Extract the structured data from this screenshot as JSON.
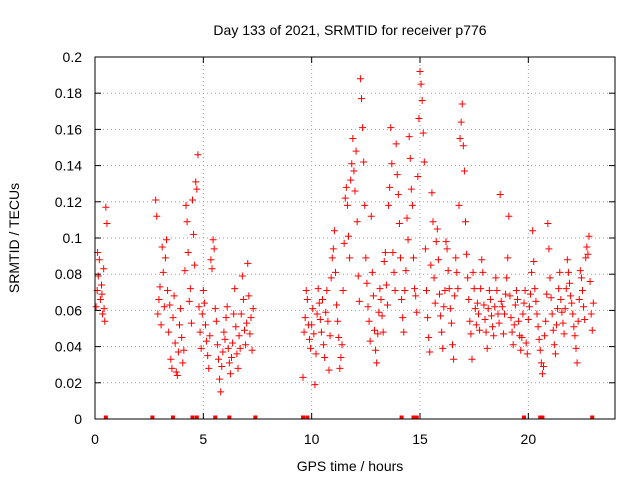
{
  "chart_data": {
    "type": "scatter",
    "title": "Day 133 of 2021, SRMTID for receiver p776",
    "xlabel": "GPS time / hours",
    "ylabel": "SRMTID / TECUs",
    "xlim": [
      0,
      24
    ],
    "ylim": [
      0,
      0.2
    ],
    "grid": true,
    "marker": "+",
    "colors": {
      "points": "#ff0000",
      "grid": "#a0a0a0",
      "axis": "#000000"
    },
    "x_ticks": [
      {
        "value": 0,
        "label": "0"
      },
      {
        "value": 5,
        "label": "5"
      },
      {
        "value": 10,
        "label": "10"
      },
      {
        "value": 15,
        "label": "15"
      },
      {
        "value": 20,
        "label": "20"
      }
    ],
    "y_ticks": [
      {
        "value": 0,
        "label": "0"
      },
      {
        "value": 0.02,
        "label": "0.02"
      },
      {
        "value": 0.04,
        "label": "0.04"
      },
      {
        "value": 0.06,
        "label": "0.06"
      },
      {
        "value": 0.08,
        "label": "0.08"
      },
      {
        "value": 0.1,
        "label": "0.1"
      },
      {
        "value": 0.12,
        "label": "0.12"
      },
      {
        "value": 0.14,
        "label": "0.14"
      },
      {
        "value": 0.16,
        "label": "0.16"
      },
      {
        "value": 0.18,
        "label": "0.18"
      },
      {
        "value": 0.2,
        "label": "0.2"
      }
    ],
    "points": [
      [
        0.05,
        0.062
      ],
      [
        0.1,
        0.071
      ],
      [
        0.15,
        0.079
      ],
      [
        0.2,
        0.088
      ],
      [
        0.25,
        0.066
      ],
      [
        0.3,
        0.074
      ],
      [
        0.35,
        0.058
      ],
      [
        0.4,
        0.083
      ],
      [
        0.45,
        0.054
      ],
      [
        0.5,
        0.117
      ],
      [
        0.55,
        0.108
      ],
      [
        0.12,
        0.092
      ],
      [
        0.32,
        0.069
      ],
      [
        0.42,
        0.061
      ],
      [
        2.8,
        0.121
      ],
      [
        2.85,
        0.112
      ],
      [
        2.9,
        0.058
      ],
      [
        2.95,
        0.066
      ],
      [
        3.0,
        0.073
      ],
      [
        3.05,
        0.052
      ],
      [
        3.1,
        0.095
      ],
      [
        3.15,
        0.081
      ],
      [
        3.2,
        0.062
      ],
      [
        3.25,
        0.089
      ],
      [
        3.3,
        0.099
      ],
      [
        3.35,
        0.071
      ],
      [
        3.4,
        0.048
      ],
      [
        3.45,
        0.063
      ],
      [
        3.5,
        0.033
      ],
      [
        3.55,
        0.028
      ],
      [
        3.6,
        0.056
      ],
      [
        3.65,
        0.068
      ],
      [
        3.7,
        0.042
      ],
      [
        3.75,
        0.026
      ],
      [
        3.8,
        0.024
      ],
      [
        3.85,
        0.037
      ],
      [
        3.9,
        0.052
      ],
      [
        3.95,
        0.061
      ],
      [
        4.0,
        0.045
      ],
      [
        4.05,
        0.031
      ],
      [
        4.1,
        0.038
      ],
      [
        4.15,
        0.082
      ],
      [
        4.2,
        0.118
      ],
      [
        4.25,
        0.109
      ],
      [
        4.3,
        0.092
      ],
      [
        4.35,
        0.065
      ],
      [
        4.4,
        0.072
      ],
      [
        4.45,
        0.053
      ],
      [
        4.5,
        0.121
      ],
      [
        4.55,
        0.102
      ],
      [
        4.6,
        0.085
      ],
      [
        4.65,
        0.131
      ],
      [
        4.7,
        0.127
      ],
      [
        4.75,
        0.146
      ],
      [
        4.8,
        0.062
      ],
      [
        4.85,
        0.048
      ],
      [
        4.9,
        0.039
      ],
      [
        4.95,
        0.058
      ],
      [
        5.0,
        0.071
      ],
      [
        5.05,
        0.064
      ],
      [
        5.1,
        0.052
      ],
      [
        5.15,
        0.043
      ],
      [
        5.2,
        0.035
      ],
      [
        5.25,
        0.028
      ],
      [
        5.3,
        0.046
      ],
      [
        5.35,
        0.088
      ],
      [
        5.4,
        0.083
      ],
      [
        5.45,
        0.099
      ],
      [
        5.5,
        0.094
      ],
      [
        5.55,
        0.061
      ],
      [
        5.6,
        0.054
      ],
      [
        5.65,
        0.041
      ],
      [
        5.7,
        0.033
      ],
      [
        5.75,
        0.022
      ],
      [
        5.8,
        0.015
      ],
      [
        5.85,
        0.029
      ],
      [
        5.9,
        0.037
      ],
      [
        5.95,
        0.048
      ],
      [
        6.0,
        0.044
      ],
      [
        6.05,
        0.056
      ],
      [
        6.1,
        0.062
      ],
      [
        6.15,
        0.039
      ],
      [
        6.2,
        0.031
      ],
      [
        6.25,
        0.025
      ],
      [
        6.3,
        0.034
      ],
      [
        6.35,
        0.042
      ],
      [
        6.4,
        0.058
      ],
      [
        6.45,
        0.072
      ],
      [
        6.5,
        0.051
      ],
      [
        6.55,
        0.036
      ],
      [
        6.6,
        0.028
      ],
      [
        6.65,
        0.046
      ],
      [
        6.7,
        0.039
      ],
      [
        6.75,
        0.058
      ],
      [
        6.8,
        0.079
      ],
      [
        6.85,
        0.066
      ],
      [
        6.9,
        0.049
      ],
      [
        6.95,
        0.041
      ],
      [
        7.0,
        0.053
      ],
      [
        7.05,
        0.086
      ],
      [
        7.1,
        0.068
      ],
      [
        7.15,
        0.047
      ],
      [
        7.2,
        0.056
      ],
      [
        7.25,
        0.038
      ],
      [
        7.3,
        0.061
      ],
      [
        9.6,
        0.023
      ],
      [
        9.65,
        0.048
      ],
      [
        9.7,
        0.056
      ],
      [
        9.75,
        0.071
      ],
      [
        9.8,
        0.066
      ],
      [
        9.85,
        0.052
      ],
      [
        9.9,
        0.044
      ],
      [
        9.95,
        0.039
      ],
      [
        10.0,
        0.052
      ],
      [
        10.05,
        0.061
      ],
      [
        10.1,
        0.047
      ],
      [
        10.15,
        0.019
      ],
      [
        10.2,
        0.036
      ],
      [
        10.25,
        0.058
      ],
      [
        10.3,
        0.072
      ],
      [
        10.35,
        0.064
      ],
      [
        10.4,
        0.055
      ],
      [
        10.45,
        0.048
      ],
      [
        10.5,
        0.066
      ],
      [
        10.55,
        0.041
      ],
      [
        10.6,
        0.034
      ],
      [
        10.65,
        0.059
      ],
      [
        10.7,
        0.071
      ],
      [
        10.75,
        0.054
      ],
      [
        10.8,
        0.027
      ],
      [
        10.85,
        0.046
      ],
      [
        10.9,
        0.078
      ],
      [
        10.95,
        0.089
      ],
      [
        11.0,
        0.094
      ],
      [
        11.05,
        0.104
      ],
      [
        11.1,
        0.081
      ],
      [
        11.15,
        0.063
      ],
      [
        11.2,
        0.054
      ],
      [
        11.25,
        0.045
      ],
      [
        11.3,
        0.028
      ],
      [
        11.35,
        0.034
      ],
      [
        11.4,
        0.041
      ],
      [
        11.45,
        0.071
      ],
      [
        11.5,
        0.097
      ],
      [
        11.55,
        0.122
      ],
      [
        11.6,
        0.128
      ],
      [
        11.65,
        0.118
      ],
      [
        11.7,
        0.101
      ],
      [
        11.75,
        0.089
      ],
      [
        11.8,
        0.132
      ],
      [
        11.85,
        0.141
      ],
      [
        11.9,
        0.155
      ],
      [
        11.95,
        0.137
      ],
      [
        12.0,
        0.126
      ],
      [
        12.05,
        0.148
      ],
      [
        12.1,
        0.109
      ],
      [
        12.15,
        0.079
      ],
      [
        12.2,
        0.065
      ],
      [
        12.25,
        0.188
      ],
      [
        12.3,
        0.177
      ],
      [
        12.35,
        0.161
      ],
      [
        12.4,
        0.142
      ],
      [
        12.45,
        0.118
      ],
      [
        12.5,
        0.089
      ],
      [
        12.55,
        0.075
      ],
      [
        12.6,
        0.062
      ],
      [
        12.65,
        0.054
      ],
      [
        12.7,
        0.043
      ],
      [
        12.75,
        0.112
      ],
      [
        12.8,
        0.081
      ],
      [
        12.85,
        0.068
      ],
      [
        12.9,
        0.049
      ],
      [
        12.95,
        0.038
      ],
      [
        13.0,
        0.031
      ],
      [
        13.05,
        0.047
      ],
      [
        13.1,
        0.059
      ],
      [
        13.15,
        0.072
      ],
      [
        13.2,
        0.066
      ],
      [
        13.25,
        0.057
      ],
      [
        13.3,
        0.048
      ],
      [
        13.35,
        0.087
      ],
      [
        13.4,
        0.092
      ],
      [
        13.45,
        0.074
      ],
      [
        13.5,
        0.063
      ],
      [
        13.55,
        0.118
      ],
      [
        13.6,
        0.128
      ],
      [
        13.65,
        0.161
      ],
      [
        13.7,
        0.141
      ],
      [
        13.75,
        0.092
      ],
      [
        13.8,
        0.081
      ],
      [
        13.85,
        0.071
      ],
      [
        13.9,
        0.152
      ],
      [
        13.95,
        0.135
      ],
      [
        14.0,
        0.124
      ],
      [
        14.05,
        0.108
      ],
      [
        14.1,
        0.089
      ],
      [
        14.15,
        0.066
      ],
      [
        14.2,
        0.056
      ],
      [
        14.25,
        0.048
      ],
      [
        14.3,
        0.071
      ],
      [
        14.35,
        0.082
      ],
      [
        14.4,
        0.111
      ],
      [
        14.45,
        0.099
      ],
      [
        14.5,
        0.156
      ],
      [
        14.55,
        0.144
      ],
      [
        14.6,
        0.127
      ],
      [
        14.65,
        0.118
      ],
      [
        14.7,
        0.089
      ],
      [
        14.75,
        0.072
      ],
      [
        14.8,
        0.068
      ],
      [
        14.85,
        0.059
      ],
      [
        14.9,
        0.134
      ],
      [
        14.95,
        0.166
      ],
      [
        15.0,
        0.192
      ],
      [
        15.05,
        0.185
      ],
      [
        15.1,
        0.176
      ],
      [
        15.15,
        0.158
      ],
      [
        15.2,
        0.142
      ],
      [
        15.25,
        0.094
      ],
      [
        15.3,
        0.071
      ],
      [
        15.35,
        0.056
      ],
      [
        15.4,
        0.045
      ],
      [
        15.45,
        0.037
      ],
      [
        15.5,
        0.085
      ],
      [
        15.55,
        0.125
      ],
      [
        15.6,
        0.109
      ],
      [
        15.65,
        0.078
      ],
      [
        15.7,
        0.064
      ],
      [
        15.75,
        0.098
      ],
      [
        15.8,
        0.105
      ],
      [
        15.85,
        0.088
      ],
      [
        15.9,
        0.069
      ],
      [
        15.95,
        0.057
      ],
      [
        16.0,
        0.048
      ],
      [
        16.05,
        0.039
      ],
      [
        16.1,
        0.062
      ],
      [
        16.15,
        0.071
      ],
      [
        16.2,
        0.098
      ],
      [
        16.25,
        0.094
      ],
      [
        16.3,
        0.082
      ],
      [
        16.35,
        0.072
      ],
      [
        16.4,
        0.061
      ],
      [
        16.45,
        0.053
      ],
      [
        16.5,
        0.041
      ],
      [
        16.55,
        0.033
      ],
      [
        16.6,
        0.068
      ],
      [
        16.65,
        0.089
      ],
      [
        16.7,
        0.081
      ],
      [
        16.75,
        0.072
      ],
      [
        16.8,
        0.118
      ],
      [
        16.85,
        0.155
      ],
      [
        16.9,
        0.164
      ],
      [
        16.95,
        0.174
      ],
      [
        17.0,
        0.151
      ],
      [
        17.05,
        0.137
      ],
      [
        17.1,
        0.109
      ],
      [
        17.15,
        0.091
      ],
      [
        17.2,
        0.078
      ],
      [
        17.25,
        0.066
      ],
      [
        17.3,
        0.054
      ],
      [
        17.35,
        0.047
      ],
      [
        17.4,
        0.033
      ],
      [
        17.45,
        0.081
      ],
      [
        17.5,
        0.072
      ],
      [
        17.55,
        0.061
      ],
      [
        17.6,
        0.052
      ],
      [
        17.65,
        0.064
      ],
      [
        17.7,
        0.058
      ],
      [
        17.75,
        0.049
      ],
      [
        17.8,
        0.072
      ],
      [
        17.85,
        0.088
      ],
      [
        17.9,
        0.081
      ],
      [
        17.95,
        0.063
      ],
      [
        18.0,
        0.055
      ],
      [
        18.05,
        0.048
      ],
      [
        18.1,
        0.039
      ],
      [
        18.15,
        0.061
      ],
      [
        18.2,
        0.071
      ],
      [
        18.25,
        0.066
      ],
      [
        18.3,
        0.057
      ],
      [
        18.35,
        0.051
      ],
      [
        18.4,
        0.046
      ],
      [
        18.45,
        0.062
      ],
      [
        18.5,
        0.078
      ],
      [
        18.55,
        0.071
      ],
      [
        18.6,
        0.058
      ],
      [
        18.65,
        0.053
      ],
      [
        18.7,
        0.124
      ],
      [
        18.75,
        0.065
      ],
      [
        18.8,
        0.062
      ],
      [
        18.85,
        0.047
      ],
      [
        18.9,
        0.058
      ],
      [
        18.95,
        0.069
      ],
      [
        19.0,
        0.078
      ],
      [
        19.05,
        0.089
      ],
      [
        19.1,
        0.112
      ],
      [
        19.15,
        0.068
      ],
      [
        19.2,
        0.056
      ],
      [
        19.25,
        0.048
      ],
      [
        19.3,
        0.041
      ],
      [
        19.35,
        0.052
      ],
      [
        19.4,
        0.063
      ],
      [
        19.45,
        0.071
      ],
      [
        19.5,
        0.066
      ],
      [
        19.55,
        0.054
      ],
      [
        19.6,
        0.046
      ],
      [
        19.65,
        0.038
      ],
      [
        19.7,
        0.045
      ],
      [
        19.75,
        0.058
      ],
      [
        19.8,
        0.064
      ],
      [
        19.85,
        0.071
      ],
      [
        19.9,
        0.042
      ],
      [
        19.95,
        0.036
      ],
      [
        20.0,
        0.055
      ],
      [
        20.05,
        0.062
      ],
      [
        20.1,
        0.069
      ],
      [
        20.15,
        0.081
      ],
      [
        20.2,
        0.104
      ],
      [
        20.25,
        0.087
      ],
      [
        20.3,
        0.072
      ],
      [
        20.35,
        0.065
      ],
      [
        20.4,
        0.058
      ],
      [
        20.45,
        0.051
      ],
      [
        20.5,
        0.044
      ],
      [
        20.55,
        0.038
      ],
      [
        20.6,
        0.031
      ],
      [
        20.65,
        0.025
      ],
      [
        20.7,
        0.029
      ],
      [
        20.75,
        0.046
      ],
      [
        20.8,
        0.054
      ],
      [
        20.85,
        0.069
      ],
      [
        20.9,
        0.108
      ],
      [
        20.95,
        0.094
      ],
      [
        21.0,
        0.078
      ],
      [
        21.05,
        0.067
      ],
      [
        21.1,
        0.058
      ],
      [
        21.15,
        0.049
      ],
      [
        21.2,
        0.041
      ],
      [
        21.25,
        0.036
      ],
      [
        21.3,
        0.052
      ],
      [
        21.35,
        0.061
      ],
      [
        21.4,
        0.072
      ],
      [
        21.45,
        0.081
      ],
      [
        21.5,
        0.066
      ],
      [
        21.55,
        0.059
      ],
      [
        21.6,
        0.053
      ],
      [
        21.65,
        0.047
      ],
      [
        21.7,
        0.061
      ],
      [
        21.75,
        0.072
      ],
      [
        21.8,
        0.088
      ],
      [
        21.85,
        0.081
      ],
      [
        21.9,
        0.075
      ],
      [
        21.95,
        0.068
      ],
      [
        22.0,
        0.064
      ],
      [
        22.05,
        0.058
      ],
      [
        22.1,
        0.051
      ],
      [
        22.15,
        0.046
      ],
      [
        22.2,
        0.039
      ],
      [
        22.25,
        0.031
      ],
      [
        22.3,
        0.054
      ],
      [
        22.35,
        0.066
      ],
      [
        22.4,
        0.082
      ],
      [
        22.45,
        0.078
      ],
      [
        22.5,
        0.071
      ],
      [
        22.55,
        0.062
      ],
      [
        22.6,
        0.055
      ],
      [
        22.65,
        0.089
      ],
      [
        22.7,
        0.095
      ],
      [
        22.75,
        0.091
      ],
      [
        22.8,
        0.101
      ],
      [
        22.85,
        0.076
      ],
      [
        22.9,
        0.058
      ],
      [
        22.95,
        0.049
      ],
      [
        23.0,
        0.064
      ]
    ],
    "zero_value_times": [
      0.5,
      2.65,
      3.6,
      4.5,
      4.7,
      5.55,
      6.2,
      7.4,
      9.6,
      9.8,
      14.15,
      14.7,
      14.85,
      19.8,
      20.55,
      20.65,
      22.95
    ]
  }
}
